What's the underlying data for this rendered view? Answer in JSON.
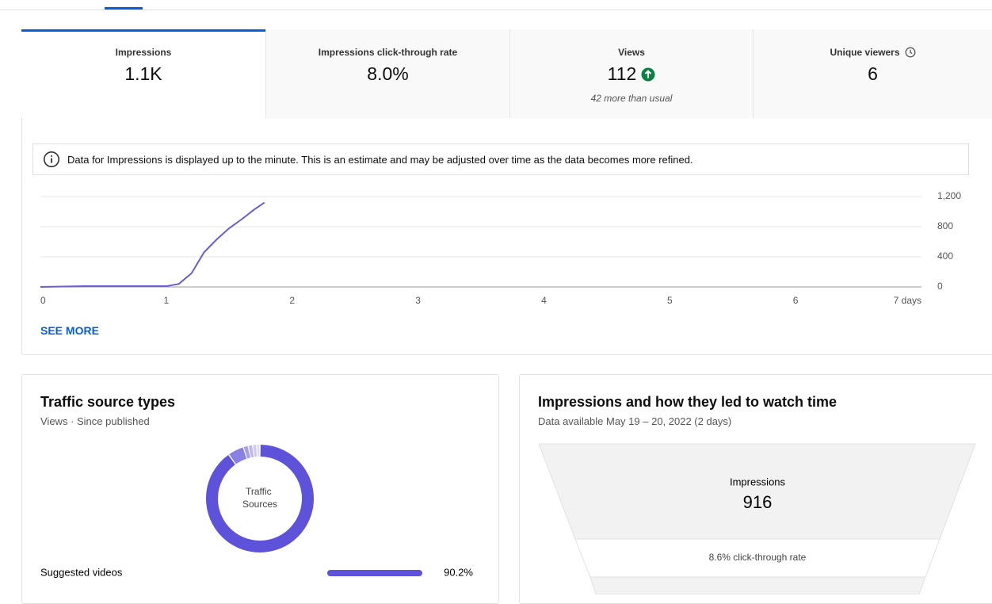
{
  "tabs": [
    {
      "label": "Impressions",
      "value": "1.1K"
    },
    {
      "label": "Impressions click-through rate",
      "value": "8.0%"
    },
    {
      "label": "Views",
      "value": "112",
      "note": "42 more than usual"
    },
    {
      "label": "Unique viewers",
      "value": "6"
    }
  ],
  "info": "Data for Impressions is displayed up to the minute. This is an estimate and may be adjusted over time as the data becomes more refined.",
  "see_more": "SEE MORE",
  "chart_data": [
    {
      "type": "line",
      "x": [
        0,
        0.35,
        1.0,
        1.1,
        1.2,
        1.3,
        1.4,
        1.5,
        1.6,
        1.7,
        1.78
      ],
      "values": [
        0,
        10,
        10,
        40,
        180,
        460,
        630,
        780,
        900,
        1030,
        1120
      ],
      "color": "#6b5cd6",
      "xlim": [
        0,
        7
      ],
      "xticks": [
        0,
        1,
        2,
        3,
        4,
        5,
        6,
        {
          "value": 7,
          "label": "7 days"
        }
      ],
      "ylim": [
        0,
        1200
      ],
      "yticks": [
        0,
        400,
        800,
        {
          "value": 1200,
          "label": "1,200"
        }
      ],
      "grid": true
    },
    {
      "type": "pie",
      "title": "Traffic source types",
      "subtitle": "Views · Since published",
      "center_label": [
        "Traffic",
        "Sources"
      ],
      "categories": [
        "Suggested videos",
        null,
        null,
        null,
        null,
        null
      ],
      "values": [
        90.2,
        4.8,
        1.5,
        1.3,
        1.2,
        1.0
      ],
      "value_labels": [
        "90.2%",
        null,
        null,
        null,
        null,
        null
      ],
      "colors": [
        "#5d52d9",
        "#8a80e3",
        "#a79fe9",
        "#bdb7ee",
        "#cfcaf3",
        "#dedbf7"
      ]
    }
  ],
  "funnel": {
    "title": "Impressions and how they led to watch time",
    "subtitle": "Data available May 19 – 20, 2022 (2 days)",
    "stage_label": "Impressions",
    "stage_value": "916",
    "ctr": "8.6% click-through rate"
  }
}
